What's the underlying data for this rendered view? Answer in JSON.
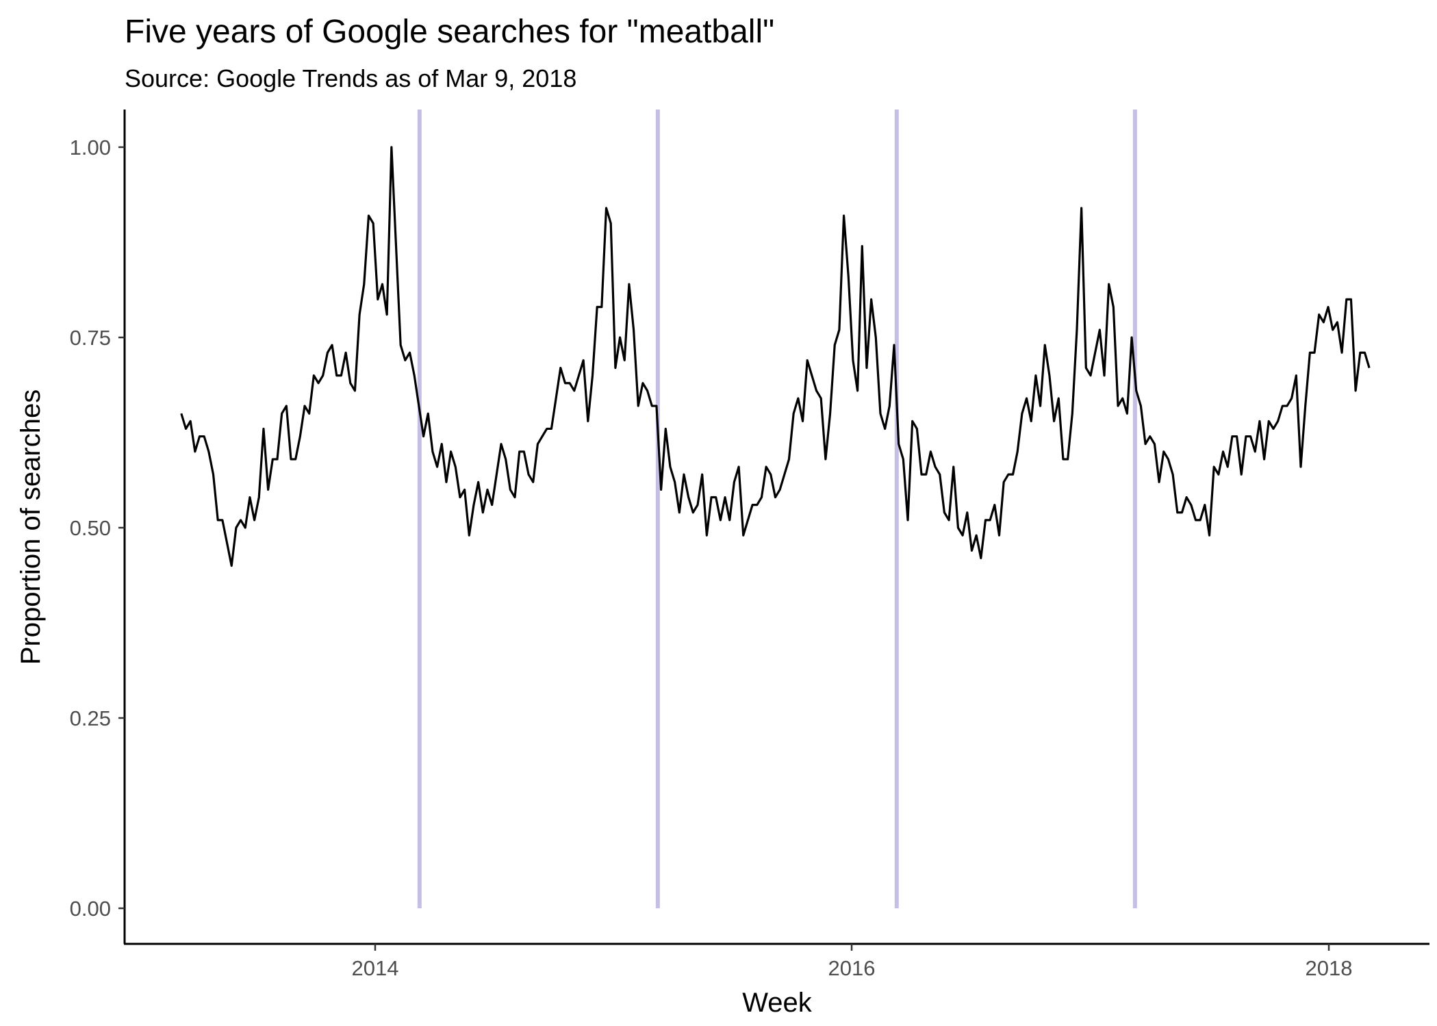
{
  "chart_data": {
    "type": "line",
    "title": "Five years of Google searches for \"meatball\"",
    "subtitle": "Source: Google Trends as of Mar 9, 2018",
    "xlabel": "Week",
    "ylabel": "Proportion of searches",
    "xlim": [
      "2013-01-01",
      "2018-06-01"
    ],
    "ylim": [
      0,
      1
    ],
    "x_ticks": [
      {
        "label": "2014",
        "value": "2014-01-01"
      },
      {
        "label": "2016",
        "value": "2016-01-01"
      },
      {
        "label": "2018",
        "value": "2018-01-01"
      }
    ],
    "y_ticks": [
      {
        "label": "0.00",
        "value": 0
      },
      {
        "label": "0.25",
        "value": 0.25
      },
      {
        "label": "0.50",
        "value": 0.5
      },
      {
        "label": "0.75",
        "value": 0.75
      },
      {
        "label": "1.00",
        "value": 1
      }
    ],
    "reference_lines": {
      "orientation": "vertical",
      "color": "#c5bfe5",
      "dates": [
        "2014-03-10",
        "2015-03-10",
        "2016-03-10",
        "2017-03-10"
      ]
    },
    "grid": false,
    "line_color": "#000000",
    "start_date": "2013-03-10",
    "x_step_days": 7,
    "values": [
      0.65,
      0.63,
      0.64,
      0.6,
      0.62,
      0.62,
      0.6,
      0.57,
      0.51,
      0.51,
      0.48,
      0.45,
      0.5,
      0.51,
      0.5,
      0.54,
      0.51,
      0.54,
      0.63,
      0.55,
      0.59,
      0.59,
      0.65,
      0.66,
      0.59,
      0.59,
      0.62,
      0.66,
      0.65,
      0.7,
      0.69,
      0.7,
      0.73,
      0.74,
      0.7,
      0.7,
      0.73,
      0.69,
      0.68,
      0.78,
      0.82,
      0.91,
      0.9,
      0.8,
      0.82,
      0.78,
      1.0,
      0.87,
      0.74,
      0.72,
      0.73,
      0.7,
      0.66,
      0.62,
      0.65,
      0.6,
      0.58,
      0.61,
      0.56,
      0.6,
      0.58,
      0.54,
      0.55,
      0.49,
      0.53,
      0.56,
      0.52,
      0.55,
      0.53,
      0.57,
      0.61,
      0.59,
      0.55,
      0.54,
      0.6,
      0.6,
      0.57,
      0.56,
      0.61,
      0.62,
      0.63,
      0.63,
      0.67,
      0.71,
      0.69,
      0.69,
      0.68,
      0.7,
      0.72,
      0.64,
      0.7,
      0.79,
      0.79,
      0.92,
      0.9,
      0.71,
      0.75,
      0.72,
      0.82,
      0.76,
      0.66,
      0.69,
      0.68,
      0.66,
      0.66,
      0.55,
      0.63,
      0.58,
      0.56,
      0.52,
      0.57,
      0.54,
      0.52,
      0.53,
      0.57,
      0.49,
      0.54,
      0.54,
      0.51,
      0.54,
      0.51,
      0.56,
      0.58,
      0.49,
      0.51,
      0.53,
      0.53,
      0.54,
      0.58,
      0.57,
      0.54,
      0.55,
      0.57,
      0.59,
      0.65,
      0.67,
      0.64,
      0.72,
      0.7,
      0.68,
      0.67,
      0.59,
      0.65,
      0.74,
      0.76,
      0.91,
      0.83,
      0.72,
      0.68,
      0.87,
      0.71,
      0.8,
      0.75,
      0.65,
      0.63,
      0.66,
      0.74,
      0.61,
      0.59,
      0.51,
      0.64,
      0.63,
      0.57,
      0.57,
      0.6,
      0.58,
      0.57,
      0.52,
      0.51,
      0.58,
      0.5,
      0.49,
      0.52,
      0.47,
      0.49,
      0.46,
      0.51,
      0.51,
      0.53,
      0.49,
      0.56,
      0.57,
      0.57,
      0.6,
      0.65,
      0.67,
      0.64,
      0.7,
      0.66,
      0.74,
      0.7,
      0.64,
      0.67,
      0.59,
      0.59,
      0.65,
      0.76,
      0.92,
      0.71,
      0.7,
      0.73,
      0.76,
      0.7,
      0.82,
      0.79,
      0.66,
      0.67,
      0.65,
      0.75,
      0.68,
      0.66,
      0.61,
      0.62,
      0.61,
      0.56,
      0.6,
      0.59,
      0.57,
      0.52,
      0.52,
      0.54,
      0.53,
      0.51,
      0.51,
      0.53,
      0.49,
      0.58,
      0.57,
      0.6,
      0.58,
      0.62,
      0.62,
      0.57,
      0.62,
      0.62,
      0.6,
      0.64,
      0.59,
      0.64,
      0.63,
      0.64,
      0.66,
      0.66,
      0.67,
      0.7,
      0.58,
      0.66,
      0.73,
      0.73,
      0.78,
      0.77,
      0.79,
      0.76,
      0.77,
      0.73,
      0.8,
      0.8,
      0.68,
      0.73,
      0.73,
      0.71
    ]
  }
}
